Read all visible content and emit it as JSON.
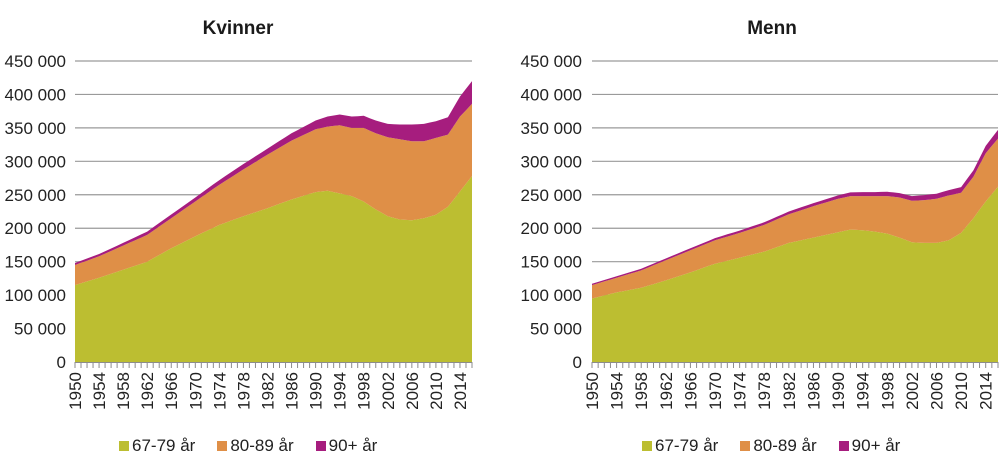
{
  "colors": {
    "s67_79": "#bcbe31",
    "s80_89": "#df8f47",
    "s90p": "#a61d7e",
    "grid": "#9a9a9a",
    "axis": "#8c8c8c"
  },
  "chart_data": [
    {
      "type": "area",
      "stacked": true,
      "title": "Kvinner",
      "xlabel": "",
      "ylabel": "",
      "ylim": [
        0,
        450000
      ],
      "yticks": [
        0,
        50000,
        100000,
        150000,
        200000,
        250000,
        300000,
        350000,
        400000,
        450000
      ],
      "ytick_labels": [
        "0",
        "50 000",
        "100 000",
        "150 000",
        "200 000",
        "250 000",
        "300 000",
        "350 000",
        "400 000",
        "450 000"
      ],
      "xtick_labels": [
        "1950",
        "1954",
        "1958",
        "1962",
        "1966",
        "1970",
        "1974",
        "1978",
        "1982",
        "1986",
        "1990",
        "1994",
        "1998",
        "2002",
        "2006",
        "2010",
        "2014"
      ],
      "x_range": [
        1950,
        2016
      ],
      "grid": true,
      "legend": "bottom",
      "key_years": [
        1950,
        1954,
        1958,
        1962,
        1966,
        1970,
        1974,
        1978,
        1982,
        1986,
        1990,
        1992,
        1994,
        1996,
        1998,
        2000,
        2002,
        2004,
        2006,
        2008,
        2010,
        2012,
        2014,
        2016
      ],
      "series": [
        {
          "name": "67-79 år",
          "values": [
            115000,
            126000,
            138000,
            150000,
            170000,
            188000,
            205000,
            218000,
            230000,
            243000,
            254000,
            256000,
            252000,
            248000,
            240000,
            228000,
            218000,
            213000,
            212000,
            215000,
            220000,
            232000,
            255000,
            278000
          ]
        },
        {
          "name": "80-89 år",
          "values": [
            30000,
            32000,
            36000,
            40000,
            45000,
            52000,
            60000,
            70000,
            80000,
            88000,
            94000,
            96000,
            102000,
            102000,
            110000,
            114000,
            118000,
            120000,
            118000,
            115000,
            115000,
            108000,
            112000,
            108000
          ]
        },
        {
          "name": "90+ år",
          "values": [
            3000,
            3500,
            4000,
            5000,
            5500,
            6000,
            7000,
            8000,
            9000,
            11000,
            13000,
            15000,
            16000,
            17000,
            18000,
            19000,
            20000,
            22000,
            25000,
            26000,
            25000,
            26000,
            30000,
            34000
          ]
        }
      ]
    },
    {
      "type": "area",
      "stacked": true,
      "title": "Menn",
      "xlabel": "",
      "ylabel": "",
      "ylim": [
        0,
        450000
      ],
      "yticks": [
        0,
        50000,
        100000,
        150000,
        200000,
        250000,
        300000,
        350000,
        400000,
        450000
      ],
      "ytick_labels": [
        "0",
        "50 000",
        "100 000",
        "150 000",
        "200 000",
        "250 000",
        "300 000",
        "350 000",
        "400 000",
        "450 000"
      ],
      "xtick_labels": [
        "1950",
        "1954",
        "1958",
        "1962",
        "1966",
        "1970",
        "1974",
        "1978",
        "1982",
        "1986",
        "1990",
        "1994",
        "1998",
        "2002",
        "2006",
        "2010",
        "2014"
      ],
      "x_range": [
        1950,
        2016
      ],
      "grid": true,
      "legend": "bottom",
      "key_years": [
        1950,
        1954,
        1958,
        1962,
        1966,
        1970,
        1974,
        1978,
        1982,
        1986,
        1990,
        1992,
        1994,
        1996,
        1998,
        2000,
        2002,
        2004,
        2006,
        2008,
        2010,
        2012,
        2014,
        2016
      ],
      "series": [
        {
          "name": "67-79 år",
          "values": [
            95000,
            104000,
            111000,
            122000,
            134000,
            147000,
            156000,
            165000,
            178000,
            186000,
            194000,
            198000,
            197000,
            195000,
            192000,
            186000,
            179000,
            178000,
            178000,
            182000,
            193000,
            215000,
            240000,
            262000
          ]
        },
        {
          "name": "80-89 år",
          "values": [
            20000,
            22000,
            26000,
            30000,
            33000,
            35000,
            37000,
            40000,
            43000,
            47000,
            50000,
            50000,
            51000,
            53000,
            56000,
            60000,
            62000,
            64000,
            66000,
            67000,
            60000,
            62000,
            72000,
            72000
          ]
        },
        {
          "name": "90+ år",
          "values": [
            2000,
            2200,
            2500,
            2800,
            3000,
            3200,
            3500,
            3800,
            4000,
            4500,
            5000,
            5500,
            6000,
            6000,
            6500,
            6500,
            7000,
            7500,
            7500,
            8000,
            8500,
            9500,
            11000,
            13000
          ]
        }
      ]
    }
  ]
}
